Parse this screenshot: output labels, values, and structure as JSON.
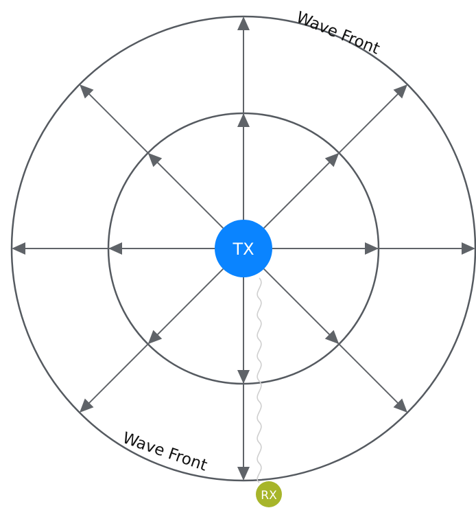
{
  "transmitter": {
    "label": "TX",
    "color": "#0a84ff"
  },
  "receiver": {
    "label": "RX",
    "color": "#a7b52a"
  },
  "wave_front_labels": {
    "outer_top": "Wave Front",
    "outer_bottom": "Wave Front"
  },
  "colors": {
    "rings": "#555a60",
    "rays": "#5f6368",
    "signal_path": "#cfcfcf",
    "label_text": "#111111",
    "node_text": "#ffffff"
  },
  "ray_directions_deg": [
    0,
    45,
    90,
    135,
    180,
    225,
    270,
    315
  ]
}
